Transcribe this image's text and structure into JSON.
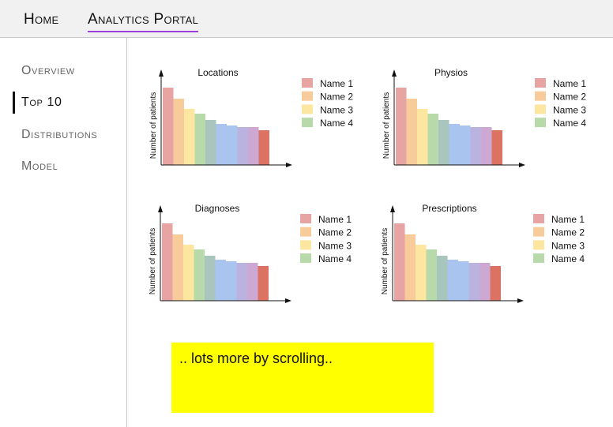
{
  "nav": {
    "home": "Home",
    "portal": "Analytics Portal"
  },
  "sidebar": {
    "items": [
      {
        "label": "Overview"
      },
      {
        "label": "Top 10"
      },
      {
        "label": "Distributions"
      },
      {
        "label": "Model"
      }
    ],
    "active_index": 1
  },
  "colors": {
    "underline": "#9b3fd6",
    "note_background": "#ffff00",
    "bars": [
      "#e8a3a3",
      "#f7cc9a",
      "#fde7a0",
      "#b8d9a9",
      "#a8c6be",
      "#a9c4ee",
      "#a9c4ee",
      "#bbb3df",
      "#cca8d2",
      "#dc7261"
    ]
  },
  "chart_data": [
    {
      "type": "bar",
      "title": "Locations",
      "ylabel": "Number of patients",
      "values": [
        98,
        84,
        71,
        65,
        57,
        52,
        50,
        48,
        48,
        44
      ],
      "legend": [
        "Name 1",
        "Name 2",
        "Name 3",
        "Name 4"
      ]
    },
    {
      "type": "bar",
      "title": "Physios",
      "ylabel": "Number of patients",
      "values": [
        98,
        84,
        71,
        65,
        57,
        52,
        50,
        48,
        48,
        44
      ],
      "legend": [
        "Name 1",
        "Name 2",
        "Name 3",
        "Name 4"
      ]
    },
    {
      "type": "bar",
      "title": "Diagnoses",
      "ylabel": "Number of patients",
      "values": [
        98,
        84,
        71,
        65,
        57,
        52,
        50,
        48,
        48,
        44
      ],
      "legend": [
        "Name 1",
        "Name 2",
        "Name 3",
        "Name 4"
      ]
    },
    {
      "type": "bar",
      "title": "Prescriptions",
      "ylabel": "Number of patients",
      "values": [
        98,
        84,
        71,
        65,
        57,
        52,
        50,
        48,
        48,
        44
      ],
      "legend": [
        "Name 1",
        "Name 2",
        "Name 3",
        "Name 4"
      ]
    }
  ],
  "note": ".. lots more by scrolling.."
}
